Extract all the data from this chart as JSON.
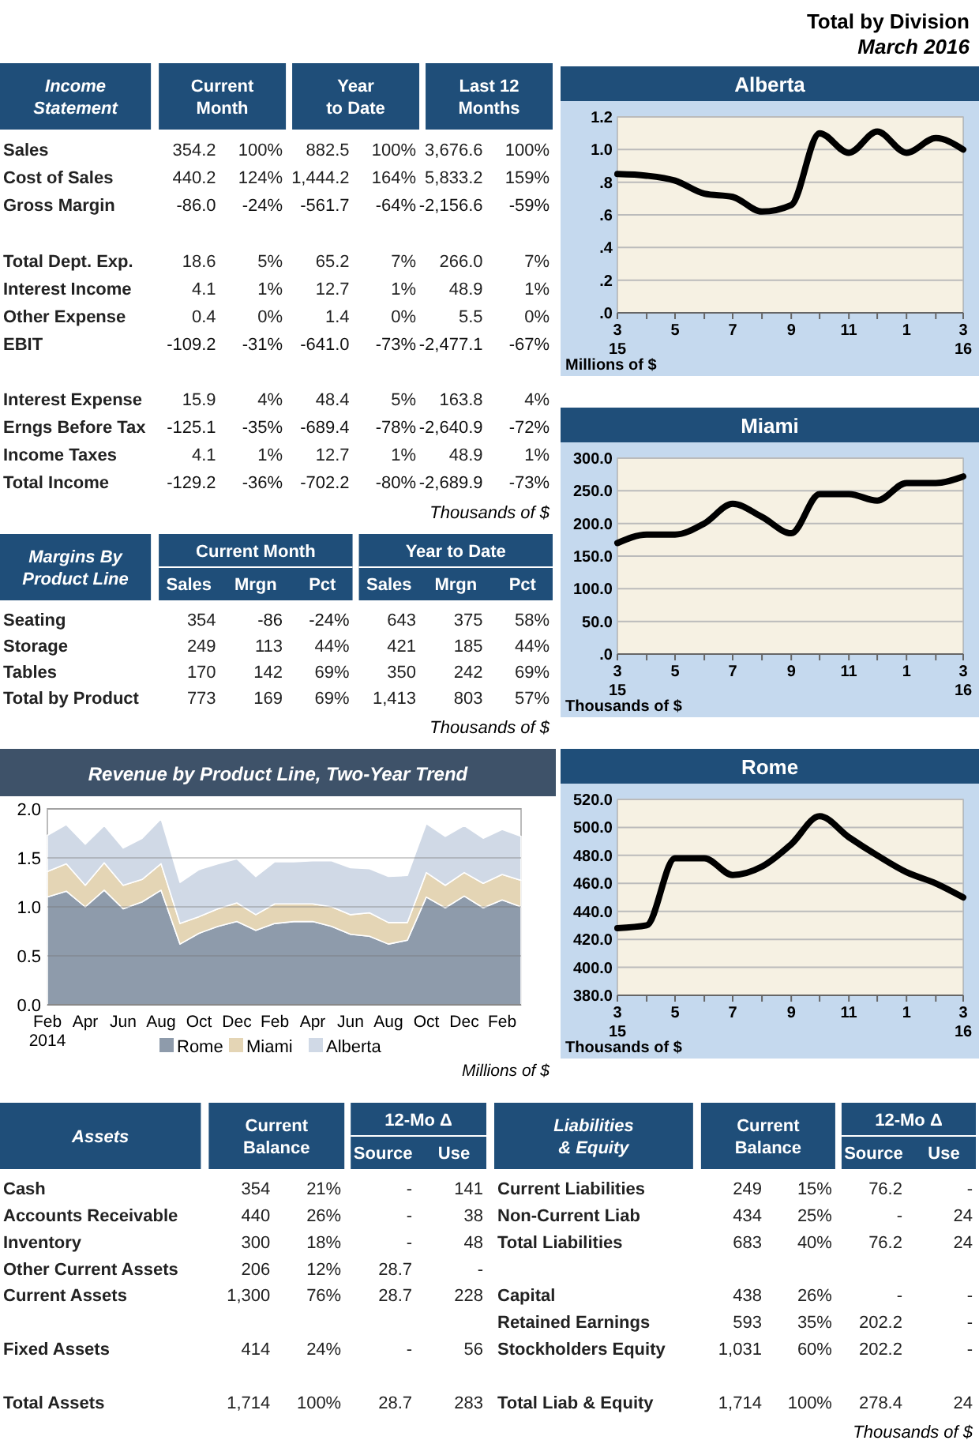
{
  "chart_data": [
    {
      "type": "other",
      "title": "Total by Division",
      "subtitle": "March 2016"
    },
    {
      "type": "other",
      "title": "Income\nStatement",
      "xlabel": "Thousands of $",
      "categories": [
        "Sales",
        "Cost of Sales",
        "Gross Margin",
        null,
        "Total Dept. Exp.",
        "Interest Income",
        "Other Expense",
        "EBIT",
        null,
        "Interest Expense",
        "Erngs Before Tax",
        "Income Taxes",
        "Total Income"
      ],
      "series": [
        {
          "name": "Current\nMonth",
          "values": [
            354.2,
            440.2,
            -86.0,
            null,
            18.6,
            4.1,
            0.4,
            -109.2,
            null,
            15.9,
            -125.1,
            4.1,
            -129.2
          ],
          "value_labels": [
            "354.2",
            "440.2",
            "-86.0",
            null,
            "18.6",
            "4.1",
            "0.4",
            "-109.2",
            null,
            "15.9",
            "-125.1",
            "4.1",
            "-129.2"
          ]
        },
        {
          "values": [
            100,
            124,
            -24,
            null,
            5,
            1,
            0,
            -31,
            null,
            4,
            -35,
            1,
            -36
          ],
          "value_labels": [
            "100%",
            "124%",
            "-24%",
            null,
            "5%",
            "1%",
            "0%",
            "-31%",
            null,
            "4%",
            "-35%",
            "1%",
            "-36%"
          ]
        },
        {
          "name": "Year\nto Date",
          "values": [
            882.5,
            1444.2,
            -561.7,
            null,
            65.2,
            12.7,
            1.4,
            -641.0,
            null,
            48.4,
            -689.4,
            12.7,
            -702.2
          ],
          "value_labels": [
            "882.5",
            "1,444.2",
            "-561.7",
            null,
            "65.2",
            "12.7",
            "1.4",
            "-641.0",
            null,
            "48.4",
            "-689.4",
            "12.7",
            "-702.2"
          ]
        },
        {
          "values": [
            100,
            164,
            -64,
            null,
            7,
            1,
            0,
            -73,
            null,
            5,
            -78,
            1,
            -80
          ],
          "value_labels": [
            "100%",
            "164%",
            "-64%",
            null,
            "7%",
            "1%",
            "0%",
            "-73%",
            null,
            "5%",
            "-78%",
            "1%",
            "-80%"
          ]
        },
        {
          "name": "Last 12\nMonths",
          "values": [
            3676.6,
            5833.2,
            -2156.6,
            null,
            266.0,
            48.9,
            5.5,
            -2477.1,
            null,
            163.8,
            -2640.9,
            48.9,
            -2689.9
          ],
          "value_labels": [
            "3,676.6",
            "5,833.2",
            "-2,156.6",
            null,
            "266.0",
            "48.9",
            "5.5",
            "-2,477.1",
            null,
            "163.8",
            "-2,640.9",
            "48.9",
            "-2,689.9"
          ]
        },
        {
          "values": [
            100,
            159,
            -59,
            null,
            7,
            1,
            0,
            -67,
            null,
            4,
            -72,
            1,
            -73
          ],
          "value_labels": [
            "100%",
            "159%",
            "-59%",
            null,
            "7%",
            "1%",
            "0%",
            "-67%",
            null,
            "4%",
            "-72%",
            "1%",
            "-73%"
          ]
        }
      ]
    },
    {
      "type": "line",
      "title": "Alberta",
      "xlabel": "Millions of $",
      "x": [
        "2015-03",
        "2015-04",
        "2015-05",
        "2015-06",
        "2015-07",
        "2015-08",
        "2015-09",
        "2015-10",
        "2015-11",
        "2015-12",
        "2016-01",
        "2016-02",
        "2016-03"
      ],
      "series": [
        {
          "color": "#000000",
          "values": [
            0.85,
            0.84,
            0.81,
            0.73,
            0.71,
            0.62,
            0.66,
            1.1,
            0.98,
            1.11,
            0.98,
            1.07,
            1.0
          ]
        }
      ],
      "xlim": [
        "2015-03",
        "2016-03"
      ],
      "xticks": [
        {
          "value": "2015-03",
          "label": "3\n15"
        },
        {
          "value": "2015-04",
          "label": null
        },
        {
          "value": "2015-05",
          "label": "5"
        },
        {
          "value": "2015-06",
          "label": null
        },
        {
          "value": "2015-07",
          "label": "7"
        },
        {
          "value": "2015-08",
          "label": null
        },
        {
          "value": "2015-09",
          "label": "9"
        },
        {
          "value": "2015-10",
          "label": null
        },
        {
          "value": "2015-11",
          "label": "11"
        },
        {
          "value": "2015-12",
          "label": null
        },
        {
          "value": "2016-01",
          "label": "1"
        },
        {
          "value": "2016-02",
          "label": null
        },
        {
          "value": "2016-03",
          "label": "3\n16"
        }
      ],
      "ylim": [
        0,
        1.2
      ],
      "yticks": [
        {
          "value": 0,
          "label": ".0"
        },
        {
          "value": 0.2,
          "label": ".2"
        },
        {
          "value": 0.4,
          "label": ".4"
        },
        {
          "value": 0.6,
          "label": ".6"
        },
        {
          "value": 0.8,
          "label": ".8"
        },
        {
          "value": 1.0,
          "label": "1.0"
        },
        {
          "value": 1.2,
          "label": "1.2"
        }
      ],
      "grid": "y"
    },
    {
      "type": "line",
      "title": "Miami",
      "xlabel": "Thousands of $",
      "x": [
        "2015-03",
        "2015-04",
        "2015-05",
        "2015-06",
        "2015-07",
        "2015-08",
        "2015-09",
        "2015-10",
        "2015-11",
        "2015-12",
        "2016-01",
        "2016-02",
        "2016-03"
      ],
      "series": [
        {
          "color": "#000000",
          "values": [
            170,
            183,
            183,
            200,
            230,
            210,
            185,
            245,
            245,
            235,
            262,
            262,
            272
          ]
        }
      ],
      "xlim": [
        "2015-03",
        "2016-03"
      ],
      "xticks": [
        {
          "value": "2015-03",
          "label": "3\n15"
        },
        {
          "value": "2015-04",
          "label": null
        },
        {
          "value": "2015-05",
          "label": "5"
        },
        {
          "value": "2015-06",
          "label": null
        },
        {
          "value": "2015-07",
          "label": "7"
        },
        {
          "value": "2015-08",
          "label": null
        },
        {
          "value": "2015-09",
          "label": "9"
        },
        {
          "value": "2015-10",
          "label": null
        },
        {
          "value": "2015-11",
          "label": "11"
        },
        {
          "value": "2015-12",
          "label": null
        },
        {
          "value": "2016-01",
          "label": "1"
        },
        {
          "value": "2016-02",
          "label": null
        },
        {
          "value": "2016-03",
          "label": "3\n16"
        }
      ],
      "ylim": [
        0,
        300
      ],
      "yticks": [
        {
          "value": 0,
          "label": ".0"
        },
        {
          "value": 50,
          "label": "50.0"
        },
        {
          "value": 100,
          "label": "100.0"
        },
        {
          "value": 150,
          "label": "150.0"
        },
        {
          "value": 200,
          "label": "200.0"
        },
        {
          "value": 250,
          "label": "250.0"
        },
        {
          "value": 300,
          "label": "300.0"
        }
      ],
      "grid": "y"
    },
    {
      "type": "other",
      "title": "Margins By\nProduct Line",
      "xlabel": "Thousands of $",
      "annotations": [
        "Current Month",
        "Year to Date"
      ],
      "categories": [
        "Seating",
        "Storage",
        "Tables",
        "Total by Product"
      ],
      "series": [
        {
          "name": "Sales",
          "values": [
            354,
            249,
            170,
            773
          ],
          "value_labels": [
            "354",
            "249",
            "170",
            "773"
          ]
        },
        {
          "name": "Mrgn",
          "values": [
            -86,
            113,
            142,
            169
          ],
          "value_labels": [
            "-86",
            "113",
            "142",
            "169"
          ]
        },
        {
          "name": "Pct",
          "values": [
            -24,
            44,
            69,
            69
          ],
          "value_labels": [
            "-24%",
            "44%",
            "69%",
            "69%"
          ]
        },
        {
          "name": "Sales",
          "values": [
            643,
            421,
            350,
            1413
          ],
          "value_labels": [
            "643",
            "421",
            "350",
            "1,413"
          ]
        },
        {
          "name": "Mrgn",
          "values": [
            375,
            185,
            242,
            803
          ],
          "value_labels": [
            "375",
            "185",
            "242",
            "803"
          ]
        },
        {
          "name": "Pct",
          "values": [
            58,
            44,
            69,
            57
          ],
          "value_labels": [
            "58%",
            "44%",
            "69%",
            "57%"
          ]
        }
      ]
    },
    {
      "type": "area",
      "stacked": true,
      "title": "Revenue by Product Line, Two-Year Trend",
      "categories": [
        "Feb\n2014",
        null,
        "Apr",
        null,
        "Jun",
        null,
        "Aug",
        null,
        "Oct",
        null,
        "Dec",
        null,
        "Feb",
        null,
        "Apr",
        null,
        "Jun",
        null,
        "Aug",
        null,
        "Oct",
        null,
        "Dec",
        null,
        "Feb",
        null
      ],
      "series": [
        {
          "name": "Rome",
          "color": "#8e9bab",
          "values": [
            1.1,
            1.16,
            1.0,
            1.17,
            0.98,
            1.05,
            1.17,
            0.62,
            0.73,
            0.8,
            0.85,
            0.76,
            0.83,
            0.85,
            0.85,
            0.8,
            0.72,
            0.7,
            0.62,
            0.66,
            1.1,
            0.99,
            1.11,
            0.99,
            1.07,
            1.0
          ]
        },
        {
          "name": "Miami",
          "color": "#e4d5b5",
          "values": [
            0.26,
            0.28,
            0.22,
            0.28,
            0.24,
            0.23,
            0.27,
            0.21,
            0.17,
            0.18,
            0.19,
            0.16,
            0.2,
            0.18,
            0.18,
            0.2,
            0.2,
            0.24,
            0.22,
            0.18,
            0.25,
            0.23,
            0.24,
            0.25,
            0.26,
            0.27
          ]
        },
        {
          "name": "Alberta",
          "color": "#d0d9e6",
          "values": [
            0.37,
            0.4,
            0.42,
            0.38,
            0.38,
            0.42,
            0.46,
            0.42,
            0.48,
            0.46,
            0.45,
            0.39,
            0.43,
            0.43,
            0.44,
            0.47,
            0.48,
            0.45,
            0.47,
            0.48,
            0.5,
            0.5,
            0.48,
            0.46,
            0.46,
            0.45
          ]
        }
      ],
      "ylim": [
        0,
        2
      ],
      "yticks": [
        {
          "value": 0,
          "label": "0.0"
        },
        {
          "value": 0.5,
          "label": "0.5"
        },
        {
          "value": 1,
          "label": "1.0"
        },
        {
          "value": 1.5,
          "label": "1.5"
        },
        {
          "value": 2,
          "label": "2.0"
        }
      ],
      "grid": "y",
      "legend": "bottom",
      "annotations": [
        "Millions of $"
      ]
    },
    {
      "type": "line",
      "title": "Rome",
      "xlabel": "Thousands of $",
      "x": [
        "2015-03",
        "2015-04",
        "2015-05",
        "2015-06",
        "2015-07",
        "2015-08",
        "2015-09",
        "2015-10",
        "2015-11",
        "2015-12",
        "2016-01",
        "2016-02",
        "2016-03"
      ],
      "series": [
        {
          "color": "#000000",
          "values": [
            428,
            430,
            478,
            478,
            466,
            472,
            488,
            508,
            493,
            480,
            468,
            460,
            450
          ]
        }
      ],
      "xlim": [
        "2015-03",
        "2016-03"
      ],
      "xticks": [
        {
          "value": "2015-03",
          "label": "3\n15"
        },
        {
          "value": "2015-04",
          "label": null
        },
        {
          "value": "2015-05",
          "label": "5"
        },
        {
          "value": "2015-06",
          "label": null
        },
        {
          "value": "2015-07",
          "label": "7"
        },
        {
          "value": "2015-08",
          "label": null
        },
        {
          "value": "2015-09",
          "label": "9"
        },
        {
          "value": "2015-10",
          "label": null
        },
        {
          "value": "2015-11",
          "label": "11"
        },
        {
          "value": "2015-12",
          "label": null
        },
        {
          "value": "2016-01",
          "label": "1"
        },
        {
          "value": "2016-02",
          "label": null
        },
        {
          "value": "2016-03",
          "label": "3\n16"
        }
      ],
      "ylim": [
        380,
        520
      ],
      "yticks": [
        {
          "value": 380,
          "label": "380.0"
        },
        {
          "value": 400,
          "label": "400.0"
        },
        {
          "value": 420,
          "label": "420.0"
        },
        {
          "value": 440,
          "label": "440.0"
        },
        {
          "value": 460,
          "label": "460.0"
        },
        {
          "value": 480,
          "label": "480.0"
        },
        {
          "value": 500,
          "label": "500.0"
        },
        {
          "value": 520,
          "label": "520.0"
        }
      ],
      "grid": "y"
    },
    {
      "type": "other",
      "title": "Assets",
      "annotations": [
        "12-Mo Δ"
      ],
      "categories": [
        "Cash",
        "Accounts Receivable",
        "Inventory",
        "Other Current Assets",
        "Current Assets",
        null,
        "Fixed Assets",
        null,
        "Total Assets"
      ],
      "series": [
        {
          "name": "Current\nBalance",
          "values": [
            354,
            440,
            300,
            206,
            1300,
            null,
            414,
            null,
            1714
          ],
          "value_labels": [
            "354",
            "440",
            "300",
            "206",
            "1,300",
            null,
            "414",
            null,
            "1,714"
          ]
        },
        {
          "values": [
            21,
            26,
            18,
            12,
            76,
            null,
            24,
            null,
            100
          ],
          "value_labels": [
            "21%",
            "26%",
            "18%",
            "12%",
            "76%",
            null,
            "24%",
            null,
            "100%"
          ]
        },
        {
          "name": "Source",
          "values": [
            null,
            null,
            null,
            28.7,
            28.7,
            null,
            null,
            null,
            28.7
          ],
          "value_labels": [
            "-",
            "-",
            "-",
            "28.7",
            "28.7",
            null,
            "-",
            null,
            "28.7"
          ]
        },
        {
          "name": "Use",
          "values": [
            141,
            38,
            48,
            null,
            228,
            null,
            56,
            null,
            283
          ],
          "value_labels": [
            "141",
            "38",
            "48",
            "-",
            "228",
            null,
            "56",
            null,
            "283"
          ]
        }
      ]
    },
    {
      "type": "other",
      "title": "Liabilities\n& Equity",
      "xlabel": "Thousands of $",
      "annotations": [
        "12-Mo Δ"
      ],
      "categories": [
        "Current Liabilities",
        "Non-Current Liab",
        "Total Liabilities",
        null,
        "Capital",
        "Retained Earnings",
        "Stockholders Equity",
        null,
        "Total Liab & Equity"
      ],
      "series": [
        {
          "name": "Current\nBalance",
          "values": [
            249,
            434,
            683,
            null,
            438,
            593,
            1031,
            null,
            1714
          ],
          "value_labels": [
            "249",
            "434",
            "683",
            null,
            "438",
            "593",
            "1,031",
            null,
            "1,714"
          ]
        },
        {
          "values": [
            15,
            25,
            40,
            null,
            26,
            35,
            60,
            null,
            100
          ],
          "value_labels": [
            "15%",
            "25%",
            "40%",
            null,
            "26%",
            "35%",
            "60%",
            null,
            "100%"
          ]
        },
        {
          "name": "Source",
          "values": [
            76.2,
            null,
            76.2,
            null,
            null,
            202.2,
            202.2,
            null,
            278.4
          ],
          "value_labels": [
            "76.2",
            "-",
            "76.2",
            null,
            "-",
            "202.2",
            "202.2",
            null,
            "278.4"
          ]
        },
        {
          "name": "Use",
          "values": [
            null,
            24,
            24,
            null,
            null,
            null,
            null,
            null,
            24
          ],
          "value_labels": [
            "-",
            "24",
            "24",
            null,
            "-",
            "-",
            "-",
            null,
            "24"
          ]
        }
      ]
    }
  ]
}
